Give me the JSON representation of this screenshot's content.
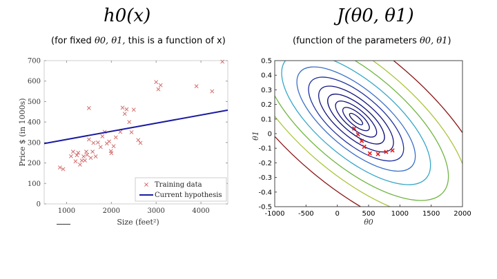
{
  "titles": {
    "left": "h0(x)",
    "right": "J(θ0, θ1)",
    "left_sub_pre": "(for fixed ",
    "left_sub_math": "θ0, θ1,",
    "left_sub_post": " this is a function of x)",
    "right_sub_pre": "(function of the parameters ",
    "right_sub_math": "θ0, θ1",
    "right_sub_post": ")"
  },
  "chart_data": [
    {
      "type": "scatter",
      "title": "",
      "xlabel": "Size (feet²)",
      "ylabel": "Price $ (in 1000s)",
      "xlim": [
        500,
        4600
      ],
      "ylim": [
        0,
        700
      ],
      "xticks": [
        "1000",
        "2000",
        "3000",
        "4000"
      ],
      "yticks": [
        "0",
        "100",
        "200",
        "300",
        "400",
        "500",
        "600",
        "700"
      ],
      "legend": [
        "Training data",
        "Current hypothesis"
      ],
      "legend_position": "bottom-right",
      "colors": {
        "training": "#d06060",
        "hypothesis": "#1a1aa0"
      },
      "line": {
        "x": [
          500,
          4600
        ],
        "y": [
          295,
          458
        ]
      },
      "points": [
        [
          852,
          178
        ],
        [
          924,
          170
        ],
        [
          1100,
          233
        ],
        [
          1145,
          255
        ],
        [
          1200,
          208
        ],
        [
          1230,
          238
        ],
        [
          1260,
          250
        ],
        [
          1300,
          192
        ],
        [
          1340,
          212
        ],
        [
          1380,
          232
        ],
        [
          1410,
          212
        ],
        [
          1440,
          255
        ],
        [
          1460,
          240
        ],
        [
          1500,
          468
        ],
        [
          1500,
          315
        ],
        [
          1540,
          225
        ],
        [
          1580,
          255
        ],
        [
          1600,
          298
        ],
        [
          1650,
          232
        ],
        [
          1700,
          300
        ],
        [
          1760,
          278
        ],
        [
          1800,
          330
        ],
        [
          1850,
          352
        ],
        [
          1900,
          295
        ],
        [
          1950,
          305
        ],
        [
          1990,
          258
        ],
        [
          2000,
          248
        ],
        [
          2050,
          282
        ],
        [
          2100,
          325
        ],
        [
          2200,
          352
        ],
        [
          2250,
          470
        ],
        [
          2300,
          440
        ],
        [
          2340,
          462
        ],
        [
          2400,
          400
        ],
        [
          2450,
          350
        ],
        [
          2500,
          460
        ],
        [
          2600,
          312
        ],
        [
          2650,
          298
        ],
        [
          3000,
          595
        ],
        [
          3050,
          560
        ],
        [
          3100,
          580
        ],
        [
          3900,
          575
        ],
        [
          4250,
          550
        ],
        [
          4480,
          695
        ]
      ]
    },
    {
      "type": "contour",
      "title": "",
      "xlabel": "θ0",
      "ylabel": "θ1",
      "xlim": [
        -1000,
        2000
      ],
      "ylim": [
        -0.5,
        0.5
      ],
      "xticks": [
        "-1000",
        "-500",
        "0",
        "500",
        "1000",
        "1500",
        "2000"
      ],
      "yticks": [
        "0.5",
        "0.4",
        "0.3",
        "0.2",
        "0.1",
        "0",
        "-0.1",
        "-0.2",
        "-0.3",
        "-0.4",
        "-0.5"
      ],
      "center": [
        300,
        0.1
      ],
      "levels_color": [
        "#0d0d7a",
        "#0d0d7a",
        "#0d0d7a",
        "#0d0d7a",
        "#14147e",
        "#1c2e9e",
        "#3a6fc8",
        "#35a6c8",
        "#6fb542",
        "#a9c43a",
        "#8a1414"
      ],
      "path_points": [
        [
          270,
          0.035
        ],
        [
          330,
          -0.005
        ],
        [
          390,
          -0.05
        ],
        [
          430,
          -0.09
        ],
        [
          520,
          -0.135
        ],
        [
          650,
          -0.14
        ],
        [
          780,
          -0.125
        ],
        [
          880,
          -0.115
        ]
      ],
      "marker_color": "#e02020"
    }
  ]
}
